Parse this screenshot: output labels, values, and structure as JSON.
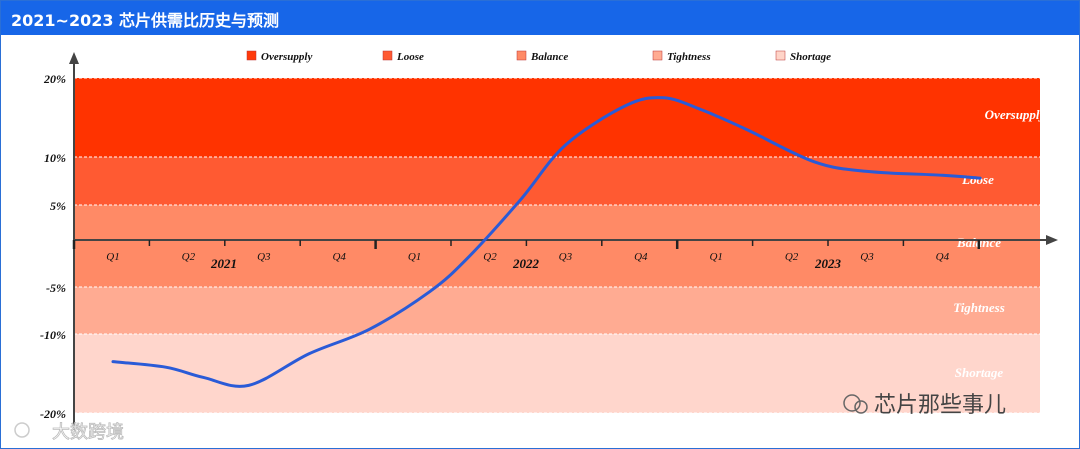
{
  "title": "2021~2023 芯片供需比历史与预测",
  "legend": [
    {
      "label": "Oversupply",
      "color": "#ff3a0a"
    },
    {
      "label": "Loose",
      "color": "#ff5a32"
    },
    {
      "label": "Balance",
      "color": "#ff8a66"
    },
    {
      "label": "Tightness",
      "color": "#ffab92"
    },
    {
      "label": "Shortage",
      "color": "#ffd4c8"
    }
  ],
  "watermarks": {
    "right": "芯片那些事儿",
    "left": "大数跨境"
  },
  "chart_data": {
    "type": "line",
    "title": "2021~2023 芯片供需比历史与预测",
    "ylim": [
      -20,
      20
    ],
    "y_ticks": [
      "20%",
      "10%",
      "5%",
      "-5%",
      "-10%",
      "-20%"
    ],
    "y_tick_values": [
      20,
      10,
      5,
      -5,
      -10,
      -20
    ],
    "x_tick_labels": [
      "Q1",
      "Q2",
      "Q3",
      "Q4",
      "Q1",
      "Q2",
      "Q3",
      "Q4",
      "Q1",
      "Q2",
      "Q3",
      "Q4"
    ],
    "year_labels": [
      "2021",
      "2022",
      "2023"
    ],
    "bands": [
      {
        "label": "Oversupply",
        "from": 10,
        "to": 20,
        "color": "#ff3300"
      },
      {
        "label": "Loose",
        "from": 5,
        "to": 10,
        "color": "#ff5a32"
      },
      {
        "label": "Balance",
        "from": -5,
        "to": 5,
        "color": "#ff8a66"
      },
      {
        "label": "Tightness",
        "from": -10,
        "to": -5,
        "color": "#ffab92"
      },
      {
        "label": "Shortage",
        "from": -20,
        "to": -10,
        "color": "#ffd6cc"
      }
    ],
    "series": [
      {
        "color": "#2a5bd7",
        "points": [
          {
            "x": 0.0,
            "y": -13.5
          },
          {
            "x": 0.7,
            "y": -14.2
          },
          {
            "x": 1.2,
            "y": -15.5
          },
          {
            "x": 1.8,
            "y": -16.5
          },
          {
            "x": 2.6,
            "y": -12.5
          },
          {
            "x": 3.4,
            "y": -9.5
          },
          {
            "x": 4.2,
            "y": -5.5
          },
          {
            "x": 4.7,
            "y": -1.5
          },
          {
            "x": 5.4,
            "y": 5.5
          },
          {
            "x": 6.0,
            "y": 11.5
          },
          {
            "x": 6.8,
            "y": 16.5
          },
          {
            "x": 7.3,
            "y": 17.5
          },
          {
            "x": 7.8,
            "y": 16.0
          },
          {
            "x": 8.4,
            "y": 13.5
          },
          {
            "x": 9.3,
            "y": 9.5
          },
          {
            "x": 10.0,
            "y": 8.5
          },
          {
            "x": 11.0,
            "y": 8.1
          },
          {
            "x": 11.5,
            "y": 7.8
          }
        ]
      }
    ]
  }
}
